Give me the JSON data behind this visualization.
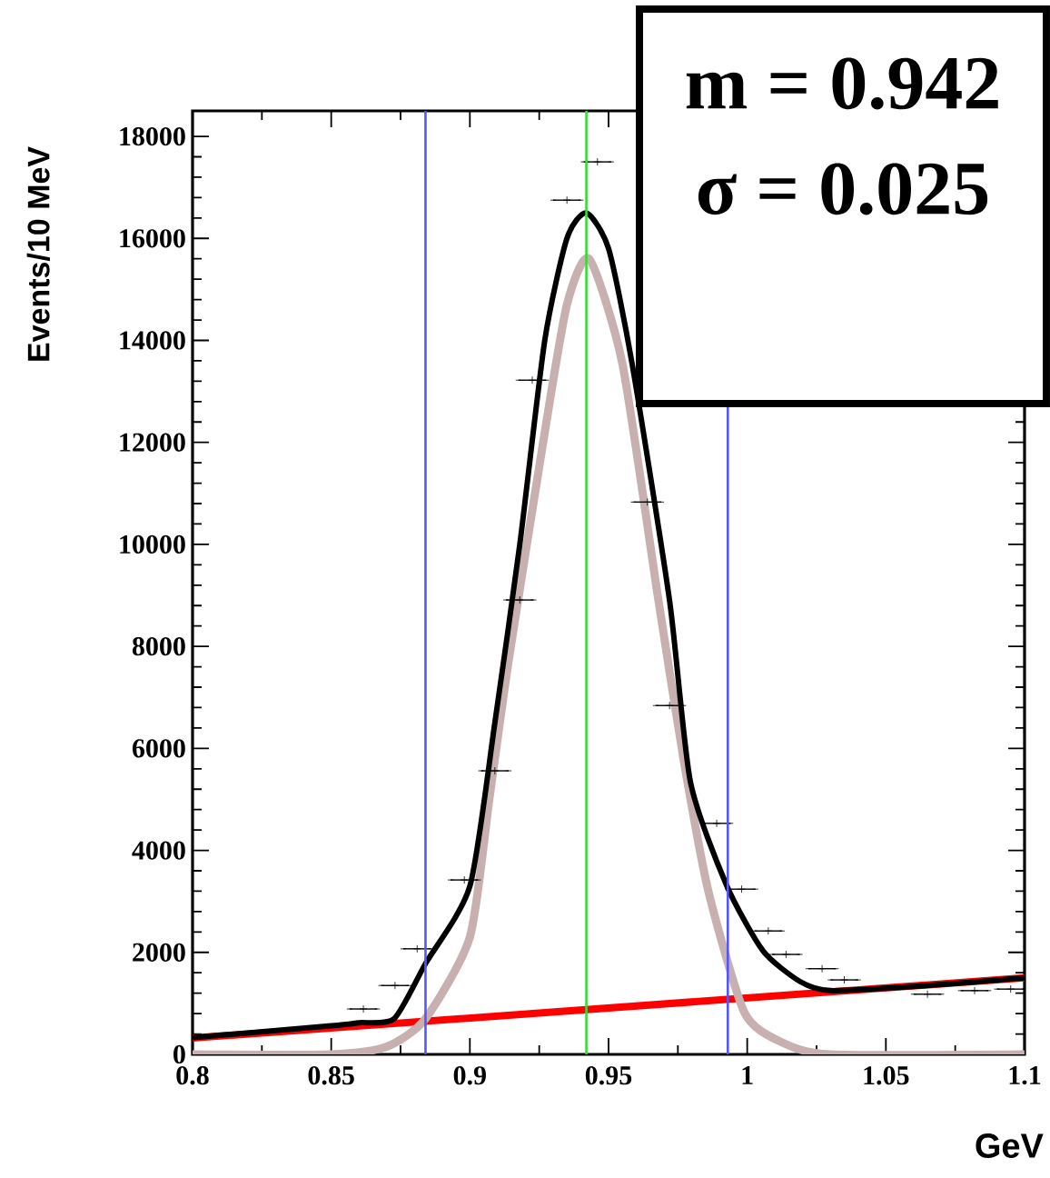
{
  "chart_data": {
    "type": "line",
    "xlabel": "GeV",
    "ylabel": "Events/10 MeV",
    "annotations": [
      "m = 0.942",
      "σ = 0.025"
    ],
    "xlim": [
      0.8,
      1.1
    ],
    "xticks": [
      0.8,
      0.85,
      0.9,
      0.95,
      1,
      1.05,
      1.1
    ],
    "ylim": [
      0,
      18500
    ],
    "yticks": [
      0,
      2000,
      4000,
      6000,
      8000,
      10000,
      12000,
      14000,
      16000,
      18000
    ],
    "grid": false,
    "series": [
      {
        "color": "#ff0000",
        "x": [
          0.8,
          1.1
        ],
        "values": [
          320,
          1500
        ]
      },
      {
        "color": "#c8b0b0",
        "x": [
          0.8,
          0.85,
          0.87,
          0.884,
          0.9,
          0.907,
          0.914,
          0.927,
          0.935,
          0.943,
          0.955,
          0.968,
          0.977,
          0.986,
          0.999,
          1.012,
          1.03,
          1.1
        ],
        "values": [
          0,
          0,
          150,
          700,
          2300,
          5000,
          7730,
          12200,
          14700,
          15600,
          13540,
          8900,
          5800,
          3200,
          820,
          250,
          0,
          0
        ]
      },
      {
        "color": "#000000",
        "x": [
          0.8,
          0.85,
          0.86,
          0.8727,
          0.884,
          0.9,
          0.909,
          0.918,
          0.927,
          0.935,
          0.942,
          0.95,
          0.9585,
          0.972,
          0.9795,
          0.9926,
          1.0057,
          1.019,
          1.03,
          1.06,
          1.1
        ],
        "values": [
          330,
          560,
          620,
          700,
          1780,
          3300,
          6500,
          10000,
          14000,
          16000,
          16500,
          15800,
          13540,
          8900,
          5350,
          3310,
          2030,
          1430,
          1250,
          1330,
          1500
        ]
      },
      {
        "type": "scatter",
        "color": "#000000",
        "marker": "cross",
        "x": [
          0.8616,
          0.873,
          0.881,
          0.898,
          0.909,
          0.918,
          0.9225,
          0.935,
          0.946,
          0.964,
          0.972,
          0.989,
          0.998,
          1.0076,
          1.014,
          1.027,
          1.035,
          1.065,
          1.082,
          1.095
        ],
        "values": [
          890,
          1350,
          2070,
          3420,
          5560,
          8910,
          13220,
          16750,
          17500,
          10830,
          6840,
          4530,
          3240,
          2420,
          1960,
          1680,
          1460,
          1180,
          1250,
          1280
        ],
        "xerrors": [
          0.005,
          0.005,
          0.005,
          0.005,
          0.005,
          0.005,
          0.005,
          0.005,
          0.005,
          0.005,
          0.005,
          0.005,
          0.005,
          0.005,
          0.005,
          0.005,
          0.005,
          0.005,
          0.005,
          0.005
        ]
      }
    ],
    "ref_lines": [
      {
        "axis": "x",
        "value": 0.942,
        "color": "#33dd33"
      },
      {
        "axis": "x",
        "value": 0.884,
        "color": "#5555ff"
      },
      {
        "axis": "x",
        "value": 0.993,
        "color": "#5555ff"
      }
    ]
  }
}
